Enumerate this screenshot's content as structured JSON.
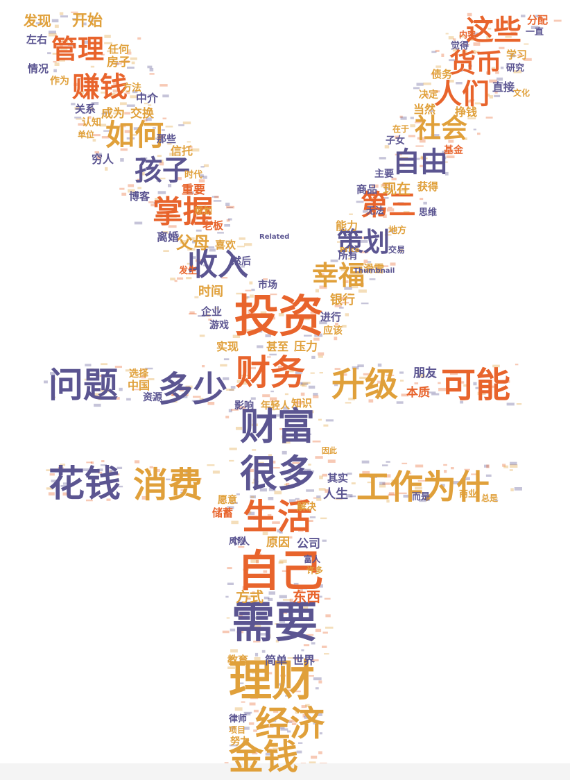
{
  "colors": {
    "purple": "#5b5591",
    "orange": "#e8642c",
    "gold": "#e0a03a",
    "background": "#ffffff"
  },
  "words": [
    {
      "text": "投资",
      "color": "orange"
    },
    {
      "text": "财务",
      "color": "orange"
    },
    {
      "text": "升级",
      "color": "gold"
    },
    {
      "text": "可能",
      "color": "orange"
    },
    {
      "text": "问题",
      "color": "purple"
    },
    {
      "text": "多少",
      "color": "purple"
    },
    {
      "text": "财富",
      "color": "purple"
    },
    {
      "text": "花钱",
      "color": "purple"
    },
    {
      "text": "消费",
      "color": "gold"
    },
    {
      "text": "很多",
      "color": "purple"
    },
    {
      "text": "工作为什",
      "color": "gold"
    },
    {
      "text": "生活",
      "color": "orange"
    },
    {
      "text": "自己",
      "color": "orange"
    },
    {
      "text": "需要",
      "color": "purple"
    },
    {
      "text": "理财",
      "color": "gold"
    },
    {
      "text": "经济",
      "color": "gold"
    },
    {
      "text": "金钱",
      "color": "gold"
    },
    {
      "text": "管理",
      "color": "orange"
    },
    {
      "text": "赚钱",
      "color": "orange"
    },
    {
      "text": "如何",
      "color": "gold"
    },
    {
      "text": "孩子",
      "color": "purple"
    },
    {
      "text": "掌握",
      "color": "orange"
    },
    {
      "text": "收入",
      "color": "purple"
    },
    {
      "text": "父母",
      "color": "gold"
    },
    {
      "text": "这些",
      "color": "orange"
    },
    {
      "text": "货币",
      "color": "orange"
    },
    {
      "text": "人们",
      "color": "orange"
    },
    {
      "text": "社会",
      "color": "gold"
    },
    {
      "text": "自由",
      "color": "purple"
    },
    {
      "text": "第三",
      "color": "orange"
    },
    {
      "text": "策划",
      "color": "purple"
    },
    {
      "text": "幸福",
      "color": "gold"
    },
    {
      "text": "发现",
      "color": "gold"
    },
    {
      "text": "开始",
      "color": "gold"
    },
    {
      "text": "左右",
      "color": "purple"
    },
    {
      "text": "任何",
      "color": "gold"
    },
    {
      "text": "房子",
      "color": "gold"
    },
    {
      "text": "情况",
      "color": "purple"
    },
    {
      "text": "作为",
      "color": "gold"
    },
    {
      "text": "方法",
      "color": "gold"
    },
    {
      "text": "中介",
      "color": "purple"
    },
    {
      "text": "关系",
      "color": "purple"
    },
    {
      "text": "成为",
      "color": "gold"
    },
    {
      "text": "交换",
      "color": "gold"
    },
    {
      "text": "认知",
      "color": "gold"
    },
    {
      "text": "单位",
      "color": "gold"
    },
    {
      "text": "那些",
      "color": "purple"
    },
    {
      "text": "信托",
      "color": "gold"
    },
    {
      "text": "穷人",
      "color": "purple"
    },
    {
      "text": "时代",
      "color": "gold"
    },
    {
      "text": "重要",
      "color": "orange"
    },
    {
      "text": "博客",
      "color": "purple"
    },
    {
      "text": "规划",
      "color": "gold"
    },
    {
      "text": "老板",
      "color": "orange"
    },
    {
      "text": "离婚",
      "color": "purple"
    },
    {
      "text": "喜欢",
      "color": "gold"
    },
    {
      "text": "然后",
      "color": "purple"
    },
    {
      "text": "发生",
      "color": "orange"
    },
    {
      "text": "时间",
      "color": "gold"
    },
    {
      "text": "市场",
      "color": "purple"
    },
    {
      "text": "企业",
      "color": "purple"
    },
    {
      "text": "游戏",
      "color": "purple"
    },
    {
      "text": "实现",
      "color": "gold"
    },
    {
      "text": "甚至",
      "color": "gold"
    },
    {
      "text": "压力",
      "color": "gold"
    },
    {
      "text": "进行",
      "color": "purple"
    },
    {
      "text": "银行",
      "color": "gold"
    },
    {
      "text": "应该",
      "color": "gold"
    },
    {
      "text": "滑雪",
      "color": "gold"
    },
    {
      "text": "所有",
      "color": "purple"
    },
    {
      "text": "能力",
      "color": "gold"
    },
    {
      "text": "无法",
      "color": "purple"
    },
    {
      "text": "地方",
      "color": "gold"
    },
    {
      "text": "交易",
      "color": "purple"
    },
    {
      "text": "商品",
      "color": "purple"
    },
    {
      "text": "现在",
      "color": "gold"
    },
    {
      "text": "获得",
      "color": "gold"
    },
    {
      "text": "主要",
      "color": "purple"
    },
    {
      "text": "子女",
      "color": "purple"
    },
    {
      "text": "基金",
      "color": "orange"
    },
    {
      "text": "在于",
      "color": "gold"
    },
    {
      "text": "挣钱",
      "color": "gold"
    },
    {
      "text": "当然",
      "color": "gold"
    },
    {
      "text": "决定",
      "color": "gold"
    },
    {
      "text": "直接",
      "color": "purple"
    },
    {
      "text": "债务",
      "color": "gold"
    },
    {
      "text": "研究",
      "color": "purple"
    },
    {
      "text": "学习",
      "color": "gold"
    },
    {
      "text": "觉得",
      "color": "purple"
    },
    {
      "text": "内容",
      "color": "orange"
    },
    {
      "text": "分配",
      "color": "orange"
    },
    {
      "text": "一直",
      "color": "purple"
    },
    {
      "text": "文化",
      "color": "gold"
    },
    {
      "text": "思维",
      "color": "purple"
    },
    {
      "text": "选择",
      "color": "gold"
    },
    {
      "text": "中国",
      "color": "gold"
    },
    {
      "text": "资源",
      "color": "purple"
    },
    {
      "text": "影响",
      "color": "purple"
    },
    {
      "text": "年轻人",
      "color": "gold"
    },
    {
      "text": "知识",
      "color": "gold"
    },
    {
      "text": "朋友",
      "color": "purple"
    },
    {
      "text": "本质",
      "color": "orange"
    },
    {
      "text": "其实",
      "color": "purple"
    },
    {
      "text": "人生",
      "color": "purple"
    },
    {
      "text": "解决",
      "color": "gold"
    },
    {
      "text": "愿意",
      "color": "gold"
    },
    {
      "text": "储蓄",
      "color": "orange"
    },
    {
      "text": "风险",
      "color": "purple"
    },
    {
      "text": "个人",
      "color": "purple"
    },
    {
      "text": "原因",
      "color": "gold"
    },
    {
      "text": "公司",
      "color": "purple"
    },
    {
      "text": "富人",
      "color": "purple"
    },
    {
      "text": "许多",
      "color": "gold"
    },
    {
      "text": "方式",
      "color": "gold"
    },
    {
      "text": "东西",
      "color": "orange"
    },
    {
      "text": "教育",
      "color": "gold"
    },
    {
      "text": "简单",
      "color": "purple"
    },
    {
      "text": "世界",
      "color": "purple"
    },
    {
      "text": "律师",
      "color": "purple"
    },
    {
      "text": "项目",
      "color": "gold"
    },
    {
      "text": "努力",
      "color": "gold"
    },
    {
      "text": "商业",
      "color": "gold"
    },
    {
      "text": "而是",
      "color": "purple"
    },
    {
      "text": "总是",
      "color": "gold"
    },
    {
      "text": "因此",
      "color": "gold"
    },
    {
      "text": "Related",
      "color": "purple"
    },
    {
      "text": "Thumbnail",
      "color": "purple"
    },
    {
      "text": "Price",
      "color": "gold"
    }
  ]
}
